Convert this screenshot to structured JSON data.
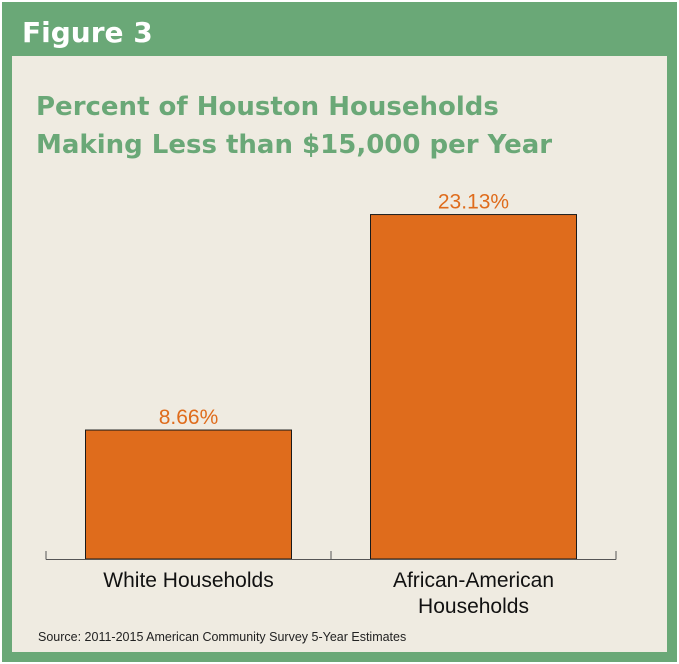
{
  "figure": {
    "label": "Figure 3",
    "source": "Source: 2011-2015 American Community Survey 5-Year Estimates"
  },
  "colors": {
    "header_green": "#6aa877",
    "panel_background": "#efebe1",
    "bar_fill": "#df6c1c",
    "value_label": "#df6c1c",
    "axis": "#555555"
  },
  "chart_data": {
    "type": "bar",
    "title": "Percent of Houston Households Making Less than $15,000 per Year",
    "title_lines": [
      "Percent of Houston Households",
      "Making Less than $15,000 per Year"
    ],
    "categories": [
      "White Households",
      "African-American Households"
    ],
    "category_label_lines": [
      [
        "White Households"
      ],
      [
        "African-American",
        "Households"
      ]
    ],
    "values": [
      8.66,
      23.13
    ],
    "value_labels": [
      "8.66%",
      "23.13%"
    ],
    "unit": "%",
    "xlabel": "",
    "ylabel": "",
    "ylim": [
      0,
      25.45
    ],
    "grid": false,
    "legend": "none"
  }
}
